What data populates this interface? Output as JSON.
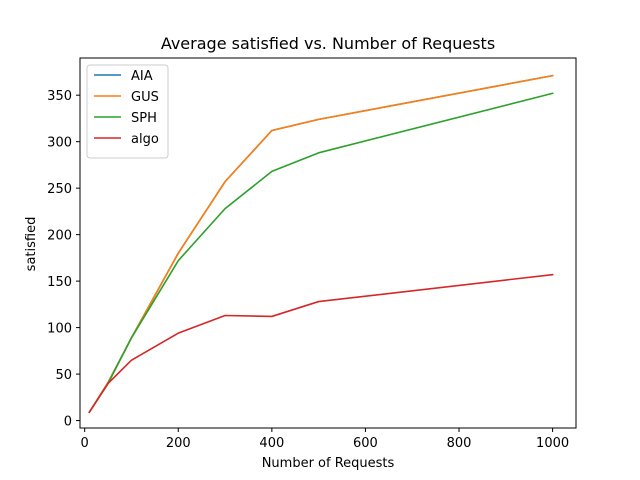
{
  "chart_data": {
    "type": "line",
    "title": "Average satisfied vs. Number of Requests",
    "xlabel": "Number of Requests",
    "ylabel": "satisfied",
    "xlim": [
      -10,
      1050
    ],
    "ylim": [
      -8,
      390
    ],
    "xticks": [
      0,
      200,
      400,
      600,
      800,
      1000
    ],
    "yticks": [
      0,
      50,
      100,
      150,
      200,
      250,
      300,
      350
    ],
    "grid": false,
    "legend_position": "upper-left",
    "x": [
      10,
      50,
      100,
      200,
      300,
      400,
      500,
      1000
    ],
    "series": [
      {
        "name": "AIA",
        "color": "#1f77b4",
        "values": [
          9,
          41,
          89,
          180,
          257,
          312,
          324,
          371
        ]
      },
      {
        "name": "GUS",
        "color": "#ff7f0e",
        "values": [
          9,
          41,
          89,
          180,
          257,
          312,
          324,
          371
        ]
      },
      {
        "name": "SPH",
        "color": "#2ca02c",
        "values": [
          9,
          40,
          89,
          172,
          228,
          268,
          288,
          352
        ]
      },
      {
        "name": "algo",
        "color": "#d62728",
        "values": [
          9,
          40,
          65,
          94,
          113,
          112,
          128,
          157
        ]
      }
    ]
  }
}
